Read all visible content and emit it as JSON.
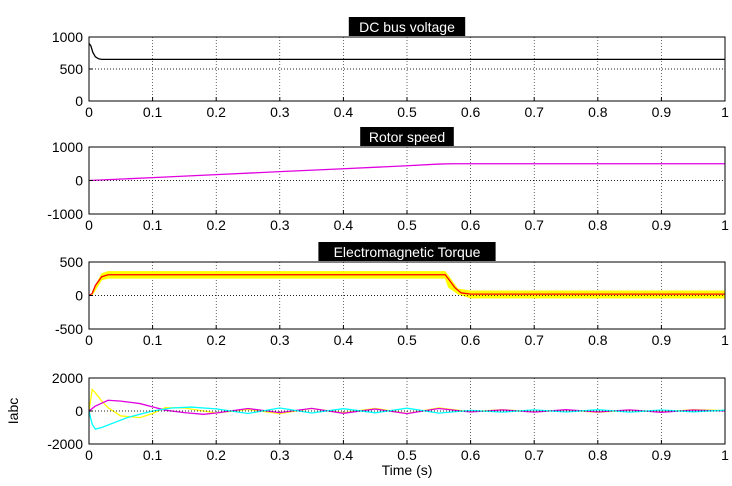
{
  "chart_data": [
    {
      "type": "line",
      "title": "DC bus voltage",
      "xlim": [
        0,
        1
      ],
      "ylim": [
        0,
        1000
      ],
      "xticks": [
        "0",
        "0.1",
        "0.2",
        "0.3",
        "0.4",
        "0.5",
        "0.6",
        "0.7",
        "0.8",
        "0.9",
        "1"
      ],
      "yticks": [
        "0",
        "500",
        "1000"
      ],
      "grid": "on",
      "series": [
        {
          "color": "#000000",
          "x": [
            0,
            0.003,
            0.006,
            0.01,
            0.015,
            0.02,
            0.03,
            0.04,
            0.06,
            0.1,
            0.2,
            0.3,
            0.4,
            0.5,
            0.6,
            0.7,
            0.8,
            0.9,
            1.0
          ],
          "y": [
            900,
            860,
            760,
            690,
            660,
            650,
            650,
            650,
            650,
            650,
            650,
            650,
            650,
            650,
            650,
            650,
            650,
            650,
            650
          ]
        },
        {
          "color": "#000000",
          "dashed": true,
          "x": [
            0,
            1
          ],
          "y": [
            500,
            500
          ]
        }
      ]
    },
    {
      "type": "line",
      "title": "Rotor speed",
      "xlim": [
        0,
        1
      ],
      "ylim": [
        -1000,
        1000
      ],
      "xticks": [
        "0",
        "0.1",
        "0.2",
        "0.3",
        "0.4",
        "0.5",
        "0.6",
        "0.7",
        "0.8",
        "0.9",
        "1"
      ],
      "yticks": [
        "-1000",
        "0",
        "1000"
      ],
      "grid": "on",
      "series": [
        {
          "color": "#e000e0",
          "x": [
            0,
            0.1,
            0.2,
            0.3,
            0.4,
            0.5,
            0.55,
            0.57,
            0.6,
            0.7,
            0.8,
            0.9,
            1.0
          ],
          "y": [
            0,
            85,
            175,
            265,
            350,
            440,
            490,
            500,
            500,
            500,
            500,
            500,
            500
          ]
        },
        {
          "color": "#000000",
          "dashed": true,
          "x": [
            0,
            1
          ],
          "y": [
            0,
            0
          ]
        }
      ]
    },
    {
      "type": "line",
      "title": "Electromagnetic Torque",
      "xlim": [
        0,
        1
      ],
      "ylim": [
        -500,
        500
      ],
      "xticks": [
        "0",
        "0.1",
        "0.2",
        "0.3",
        "0.4",
        "0.5",
        "0.6",
        "0.7",
        "0.8",
        "0.9",
        "1"
      ],
      "yticks": [
        "-500",
        "0",
        "500"
      ],
      "grid": "on",
      "series": [
        {
          "color": "#ffff00",
          "band": true,
          "x": [
            0.005,
            0.02,
            0.03,
            0.56,
            0.565,
            0.58,
            0.6,
            1.0
          ],
          "ylow": [
            0,
            230,
            255,
            255,
            120,
            20,
            -40,
            -40
          ],
          "yhigh": [
            60,
            330,
            360,
            360,
            300,
            100,
            70,
            70
          ]
        },
        {
          "color": "#ff0000",
          "x": [
            0,
            0.005,
            0.01,
            0.02,
            0.03,
            0.04,
            0.56,
            0.565,
            0.575,
            0.585,
            0.6,
            1.0
          ],
          "y": [
            0,
            30,
            150,
            280,
            310,
            310,
            310,
            250,
            120,
            40,
            20,
            20
          ]
        },
        {
          "color": "#000000",
          "dashed": true,
          "x": [
            0,
            1
          ],
          "y": [
            0,
            0
          ]
        }
      ]
    },
    {
      "type": "line",
      "title": "",
      "xlabel": "Time (s)",
      "ylabel": "Iabc",
      "xlim": [
        0,
        1
      ],
      "ylim": [
        -2000,
        2000
      ],
      "xticks": [
        "0",
        "0.1",
        "0.2",
        "0.3",
        "0.4",
        "0.5",
        "0.6",
        "0.7",
        "0.8",
        "0.9",
        "1"
      ],
      "yticks": [
        "-2000",
        "0",
        "2000"
      ],
      "grid": "on",
      "series": [
        {
          "color": "#ffff00",
          "x": [
            0,
            0.005,
            0.01,
            0.02,
            0.03,
            0.05,
            0.08,
            0.1,
            0.12,
            0.15,
            0.2,
            0.25,
            0.3,
            0.35,
            0.4,
            0.45,
            0.5,
            0.55,
            0.6,
            0.65,
            0.7,
            0.75,
            0.8,
            0.85,
            0.9,
            0.95,
            1.0
          ],
          "y": [
            0,
            1300,
            1100,
            600,
            200,
            -300,
            -400,
            -150,
            200,
            180,
            -120,
            100,
            -160,
            150,
            -110,
            160,
            -150,
            190,
            -50,
            80,
            -60,
            70,
            -80,
            60,
            -70,
            80,
            30
          ]
        },
        {
          "color": "#e000e0",
          "x": [
            0,
            0.01,
            0.03,
            0.05,
            0.08,
            0.1,
            0.12,
            0.15,
            0.18,
            0.2,
            0.25,
            0.3,
            0.35,
            0.4,
            0.45,
            0.5,
            0.55,
            0.6,
            0.65,
            0.7,
            0.75,
            0.8,
            0.85,
            0.9,
            0.95,
            1.0
          ],
          "y": [
            0,
            300,
            650,
            600,
            450,
            250,
            50,
            -100,
            -200,
            -120,
            150,
            -100,
            160,
            -140,
            120,
            -160,
            150,
            -60,
            70,
            -70,
            80,
            -60,
            70,
            -80,
            60,
            0
          ]
        },
        {
          "color": "#00ffff",
          "x": [
            0,
            0.005,
            0.01,
            0.02,
            0.04,
            0.06,
            0.08,
            0.1,
            0.13,
            0.16,
            0.2,
            0.25,
            0.3,
            0.35,
            0.4,
            0.45,
            0.5,
            0.55,
            0.6,
            0.65,
            0.7,
            0.75,
            0.8,
            0.85,
            0.9,
            0.95,
            1.0
          ],
          "y": [
            0,
            -800,
            -1100,
            -1000,
            -700,
            -400,
            -200,
            0,
            180,
            240,
            130,
            -150,
            180,
            -120,
            140,
            -110,
            170,
            -130,
            40,
            -70,
            70,
            -60,
            80,
            -70,
            60,
            -50,
            50
          ]
        },
        {
          "color": "#000000",
          "dashed": true,
          "x": [
            0,
            1
          ],
          "y": [
            0,
            0
          ]
        }
      ]
    }
  ]
}
